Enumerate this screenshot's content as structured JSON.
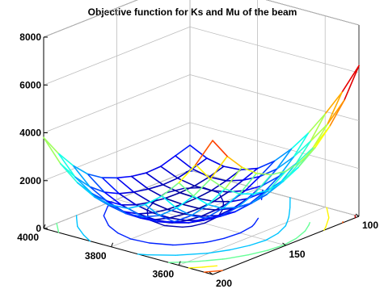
{
  "chart_data": {
    "type": "surface",
    "title": "Objective function for Ks and Mu of the beam",
    "xlabel": "",
    "ylabel": "",
    "zlabel": "",
    "x_axis": {
      "range": [
        3500,
        4000
      ],
      "ticks": [
        4000,
        3800,
        3600
      ],
      "tick_labels": [
        "4000",
        "3800",
        "3600"
      ]
    },
    "y_axis": {
      "range": [
        100,
        200
      ],
      "ticks": [
        100,
        150,
        200
      ],
      "tick_labels": [
        "100",
        "150",
        "200"
      ]
    },
    "z_axis": {
      "range": [
        0,
        8000
      ],
      "ticks": [
        0,
        2000,
        4000,
        6000,
        8000
      ],
      "tick_labels": [
        "0",
        "2000",
        "4000",
        "6000",
        "8000"
      ]
    },
    "grid": true,
    "colormap": "jet",
    "color_range": [
      0,
      6300
    ],
    "surface": {
      "x": [
        3500,
        3550,
        3600,
        3650,
        3700,
        3750,
        3800,
        3850,
        3900,
        3950,
        4000
      ],
      "y": [
        100,
        110,
        120,
        130,
        140,
        150,
        160,
        170,
        180,
        190,
        200
      ],
      "z": [
        [
          6300,
          5000,
          3900,
          2900,
          2050,
          1350,
          850,
          600,
          550,
          700,
          1050
        ],
        [
          5100,
          3900,
          3000,
          2150,
          1450,
          950,
          600,
          380,
          350,
          500,
          850
        ],
        [
          4250,
          3150,
          2300,
          1580,
          1000,
          600,
          350,
          220,
          220,
          350,
          650
        ],
        [
          3600,
          2580,
          1800,
          1170,
          700,
          380,
          200,
          150,
          180,
          320,
          620
        ],
        [
          3250,
          2250,
          1500,
          920,
          530,
          280,
          150,
          130,
          190,
          380,
          720
        ],
        [
          3100,
          2120,
          1390,
          830,
          480,
          260,
          160,
          160,
          270,
          500,
          900
        ],
        [
          3200,
          2200,
          1450,
          880,
          520,
          320,
          240,
          260,
          400,
          680,
          1150
        ],
        [
          3500,
          2450,
          1650,
          1050,
          660,
          470,
          410,
          460,
          640,
          980,
          1550
        ],
        [
          4000,
          2900,
          2050,
          1400,
          950,
          760,
          720,
          800,
          1050,
          1450,
          2150
        ],
        [
          4700,
          3550,
          2650,
          1950,
          1450,
          1200,
          1150,
          1300,
          1600,
          2100,
          2900
        ],
        [
          5600,
          4400,
          3450,
          2700,
          2150,
          1800,
          1750,
          1900,
          2300,
          2900,
          3800
        ]
      ]
    },
    "contour_levels": [
      300,
      1000,
      2000,
      3000,
      4000,
      5000,
      6000
    ]
  }
}
